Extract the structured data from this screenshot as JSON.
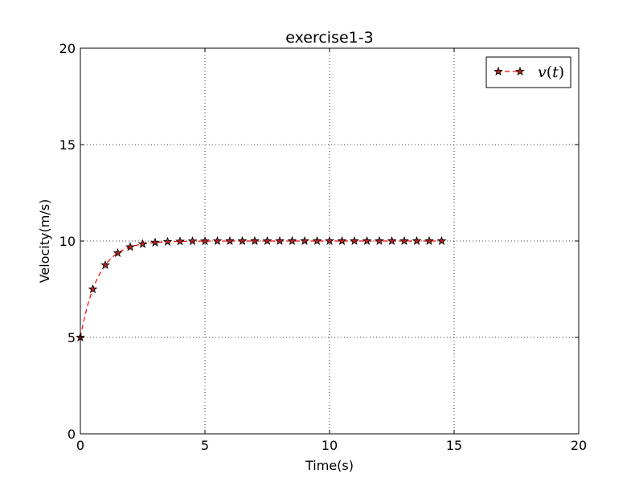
{
  "chart_data": {
    "type": "line",
    "title": "exercise1-3",
    "xlabel": "Time(s)",
    "ylabel": "Velocity(m/s)",
    "xlim": [
      0,
      20
    ],
    "ylim": [
      0,
      20
    ],
    "xticks": [
      "0",
      "5",
      "10",
      "15",
      "20"
    ],
    "yticks": [
      "0",
      "5",
      "10",
      "15",
      "20"
    ],
    "grid": true,
    "legend_position": "top-right",
    "series": [
      {
        "name": "v(t)",
        "legend_parts": {
          "symbol": "v",
          "paren_open": "(",
          "arg": "t",
          "paren_close": ")"
        },
        "line_style": "dashed",
        "marker": "star",
        "line_color": "#ff0000",
        "marker_color": "#b22222",
        "x": [
          0,
          0.5,
          1,
          1.5,
          2,
          2.5,
          3,
          3.5,
          4,
          4.5,
          5,
          5.5,
          6,
          6.5,
          7,
          7.5,
          8,
          8.5,
          9,
          9.5,
          10,
          10.5,
          11,
          11.5,
          12,
          12.5,
          13,
          13.5,
          14,
          14.5
        ],
        "y": [
          5.0,
          7.5,
          8.75,
          9.375,
          9.6875,
          9.84375,
          9.921875,
          9.9609375,
          9.98046875,
          9.990234375,
          9.9951171875,
          9.99755859375,
          9.998779296875,
          9.9993896484375,
          9.99969482421875,
          9.999847412109375,
          9.999923706054688,
          9.999961853027344,
          9.999980926513672,
          9.999990463256836,
          9.999995231628418,
          9.999997615814209,
          9.999998807907104,
          9.999999403953552,
          9.999999701976776,
          9.999999850988388,
          9.999999925494194,
          9.999999962747097,
          9.999999981373549,
          9.999999990686774
        ]
      }
    ]
  }
}
